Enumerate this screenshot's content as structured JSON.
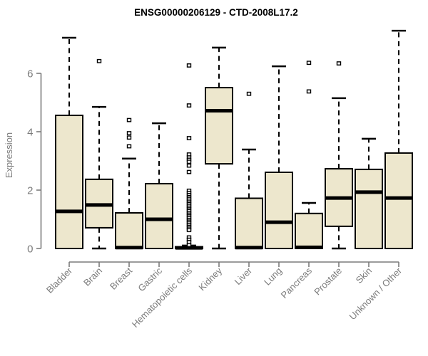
{
  "title": "ENSG00000206129 - CTD-2008L17.2",
  "chart_data": {
    "type": "boxplot",
    "title": "ENSG00000206129 - CTD-2008L17.2",
    "xlabel": "",
    "ylabel": "Expression",
    "yticks": [
      0,
      2,
      4,
      6
    ],
    "ylim": [
      0,
      7.5
    ],
    "grid": false,
    "legend": "none",
    "categories": [
      "Bladder",
      "Brain",
      "Breast",
      "Gastric",
      "Hematopoietic cells",
      "Kidney",
      "Liver",
      "Lung",
      "Pancreas",
      "Prostate",
      "Skin",
      "Unknown / Other"
    ],
    "series": [
      {
        "name": "Bladder",
        "whisker_low": 0,
        "q1": 0,
        "median": 1.27,
        "q3": 4.56,
        "whisker_high": 7.22,
        "outliers": []
      },
      {
        "name": "Brain",
        "whisker_low": 0,
        "q1": 0.71,
        "median": 1.49,
        "q3": 2.37,
        "whisker_high": 4.85,
        "outliers": [
          6.42
        ]
      },
      {
        "name": "Breast",
        "whisker_low": 0,
        "q1": 0,
        "median": 0.03,
        "q3": 1.22,
        "whisker_high": 3.08,
        "outliers": [
          4.4,
          3.95,
          3.8,
          3.5
        ]
      },
      {
        "name": "Gastric",
        "whisker_low": 0,
        "q1": 0,
        "median": 1.0,
        "q3": 2.22,
        "whisker_high": 4.29,
        "outliers": []
      },
      {
        "name": "Hematopoietic cells",
        "whisker_low": 0,
        "q1": 0,
        "median": 0.02,
        "q3": 0.06,
        "whisker_high": 0.1,
        "outliers": [
          6.27,
          4.9,
          3.78,
          3.22,
          3.12,
          3.04,
          2.97,
          2.84,
          2.62,
          1.98,
          1.9,
          1.83,
          1.76,
          1.7,
          1.64,
          1.58,
          1.52,
          1.46,
          1.4,
          1.34,
          1.28,
          1.22,
          1.16,
          1.1,
          1.04,
          0.98,
          0.92,
          0.86,
          0.8,
          0.74,
          0.68,
          0.63,
          0.38,
          0.3,
          0.22,
          0.12
        ]
      },
      {
        "name": "Kidney",
        "whisker_low": 0,
        "q1": 2.9,
        "median": 4.72,
        "q3": 5.51,
        "whisker_high": 6.88,
        "outliers": []
      },
      {
        "name": "Liver",
        "whisker_low": 0,
        "q1": 0,
        "median": 0.03,
        "q3": 1.72,
        "whisker_high": 3.39,
        "outliers": [
          5.3
        ]
      },
      {
        "name": "Lung",
        "whisker_low": 0,
        "q1": 0,
        "median": 0.9,
        "q3": 2.61,
        "whisker_high": 6.24,
        "outliers": []
      },
      {
        "name": "Pancreas",
        "whisker_low": 0,
        "q1": 0,
        "median": 0.04,
        "q3": 1.2,
        "whisker_high": 1.56,
        "outliers": [
          6.36,
          5.38
        ]
      },
      {
        "name": "Prostate",
        "whisker_low": 0,
        "q1": 0.76,
        "median": 1.73,
        "q3": 2.73,
        "whisker_high": 5.15,
        "outliers": [
          6.34
        ]
      },
      {
        "name": "Skin",
        "whisker_low": 0,
        "q1": 0,
        "median": 1.93,
        "q3": 2.71,
        "whisker_high": 3.76,
        "outliers": []
      },
      {
        "name": "Unknown / Other",
        "whisker_low": 0,
        "q1": 0,
        "median": 1.73,
        "q3": 3.27,
        "whisker_high": 7.46,
        "outliers": []
      }
    ],
    "colors": {
      "box_fill": "#EDE7CD",
      "box_border": "#000000",
      "median": "#000000",
      "whisker": "#000000",
      "axis": "#7b7b7b",
      "tick_label": "#7b7b7b",
      "title": "#000000",
      "background": "#ffffff"
    }
  }
}
